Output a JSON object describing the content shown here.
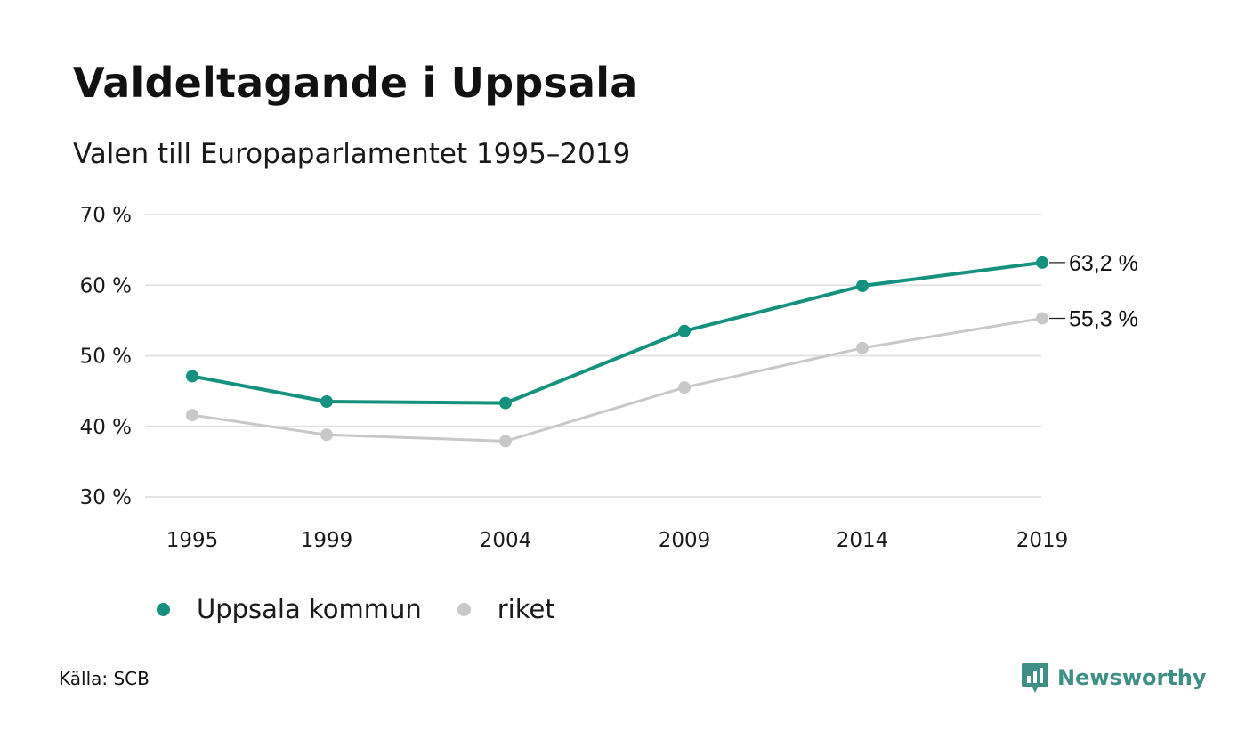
{
  "header": {
    "title": "Valdeltagande i Uppsala",
    "subtitle": "Valen till Europaparlamentet 1995–2019"
  },
  "footer": {
    "source": "Källa: SCB",
    "brand": "Newsworthy"
  },
  "colors": {
    "uppsala": "#17917f",
    "riket": "#c8c8c8",
    "grid": "#e3e3e3",
    "brand": "#3f8f86"
  },
  "chart_data": {
    "type": "line",
    "title": "Valdeltagande i Uppsala",
    "subtitle": "Valen till Europaparlamentet 1995–2019",
    "x": [
      "1995",
      "1999",
      "2004",
      "2009",
      "2014",
      "2019"
    ],
    "ylim": [
      30,
      70
    ],
    "yticks": [
      30,
      40,
      50,
      60,
      70
    ],
    "ytick_labels": [
      "30 %",
      "40 %",
      "50 %",
      "60 %",
      "70 %"
    ],
    "grid": true,
    "legend_position": "bottom-left",
    "series": [
      {
        "name": "Uppsala kommun",
        "values": [
          47.1,
          43.5,
          43.3,
          53.5,
          59.9,
          63.2
        ],
        "end_label": "63,2 %"
      },
      {
        "name": "riket",
        "values": [
          41.6,
          38.8,
          37.9,
          45.5,
          51.1,
          55.3
        ],
        "end_label": "55,3 %"
      }
    ]
  }
}
